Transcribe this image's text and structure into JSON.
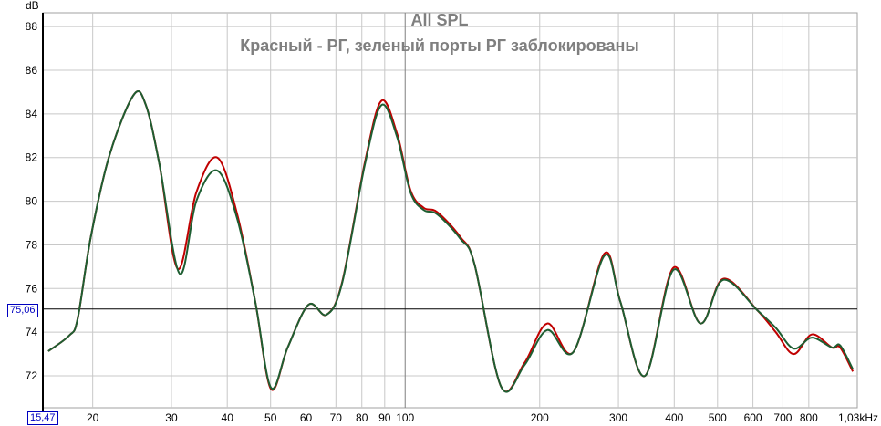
{
  "chart_data": {
    "type": "line",
    "title": "All SPL",
    "subtitle": "Красный - РГ, зеленый порты РГ заблокированы",
    "ylabel": "dB",
    "xlabel": "kHz",
    "xscale": "log",
    "xlim": [
      15.47,
      1027
    ],
    "ylim": [
      70.54,
      88.63
    ],
    "grid": true,
    "y_ticks": [
      72,
      74,
      76,
      78,
      80,
      82,
      84,
      86,
      88
    ],
    "y_tick_labels": [
      "72",
      "74",
      "76",
      "78",
      "80",
      "82",
      "84",
      "86",
      "88"
    ],
    "x_ticks": [
      20,
      30,
      40,
      50,
      60,
      70,
      80,
      90,
      100,
      200,
      300,
      400,
      500,
      600,
      700,
      800
    ],
    "x_tick_labels": [
      "20",
      "30",
      "40",
      "50",
      "60",
      "70",
      "80",
      "90",
      "100",
      "200",
      "300",
      "400",
      "500",
      "600",
      "700",
      "800"
    ],
    "x_end_label": "1,03kHz",
    "cursor": {
      "x_label": "15,47",
      "y_label": "75,06",
      "y_value": 75.06
    },
    "series": [
      {
        "name": "Red",
        "color": "#c00000",
        "x": [
          15.9,
          17.7,
          18.5,
          19.8,
          21.8,
          24.7,
          26.3,
          28.2,
          31.0,
          34.1,
          38.0,
          42.1,
          46.2,
          50.1,
          54.6,
          60.8,
          66.7,
          72.3,
          81.3,
          88.5,
          95.9,
          102.8,
          110,
          118,
          133,
          143,
          164,
          185,
          208,
          238,
          279,
          303,
          344,
          398,
          458,
          515,
          614,
          675,
          740,
          813,
          901,
          940,
          1004
        ],
        "y": [
          73.13,
          73.84,
          74.6,
          78.35,
          82.1,
          84.87,
          84.4,
          81.7,
          76.9,
          80.4,
          82.0,
          79.4,
          75.4,
          71.4,
          73.3,
          75.26,
          74.8,
          76.3,
          81.8,
          84.6,
          83.1,
          80.5,
          79.7,
          79.5,
          78.35,
          77.1,
          71.5,
          72.6,
          74.4,
          73.1,
          77.6,
          75.4,
          72.0,
          76.95,
          74.4,
          76.45,
          75.0,
          74.0,
          73.0,
          73.9,
          73.3,
          73.3,
          72.2
        ]
      },
      {
        "name": "Green",
        "color": "#1e5e32",
        "x": [
          15.9,
          17.7,
          18.5,
          19.8,
          21.8,
          24.7,
          26.3,
          28.2,
          31.3,
          34.1,
          38.0,
          42.1,
          46.2,
          50.1,
          54.6,
          60.8,
          66.7,
          72.3,
          81.3,
          88.5,
          95.9,
          102.8,
          110,
          118,
          133,
          143,
          164,
          185,
          208,
          238,
          279,
          303,
          344,
          398,
          458,
          515,
          614,
          675,
          740,
          813,
          901,
          940,
          1004
        ],
        "y": [
          73.13,
          73.84,
          74.6,
          78.35,
          82.1,
          84.87,
          84.4,
          81.7,
          76.68,
          80.0,
          81.4,
          79.2,
          75.4,
          71.46,
          73.3,
          75.26,
          74.8,
          76.26,
          81.7,
          84.4,
          82.95,
          80.4,
          79.6,
          79.4,
          78.27,
          77.1,
          71.5,
          72.5,
          74.1,
          73.1,
          77.5,
          75.4,
          72.0,
          76.85,
          74.4,
          76.4,
          75.0,
          74.2,
          73.25,
          73.75,
          73.3,
          73.4,
          72.3
        ]
      }
    ]
  }
}
